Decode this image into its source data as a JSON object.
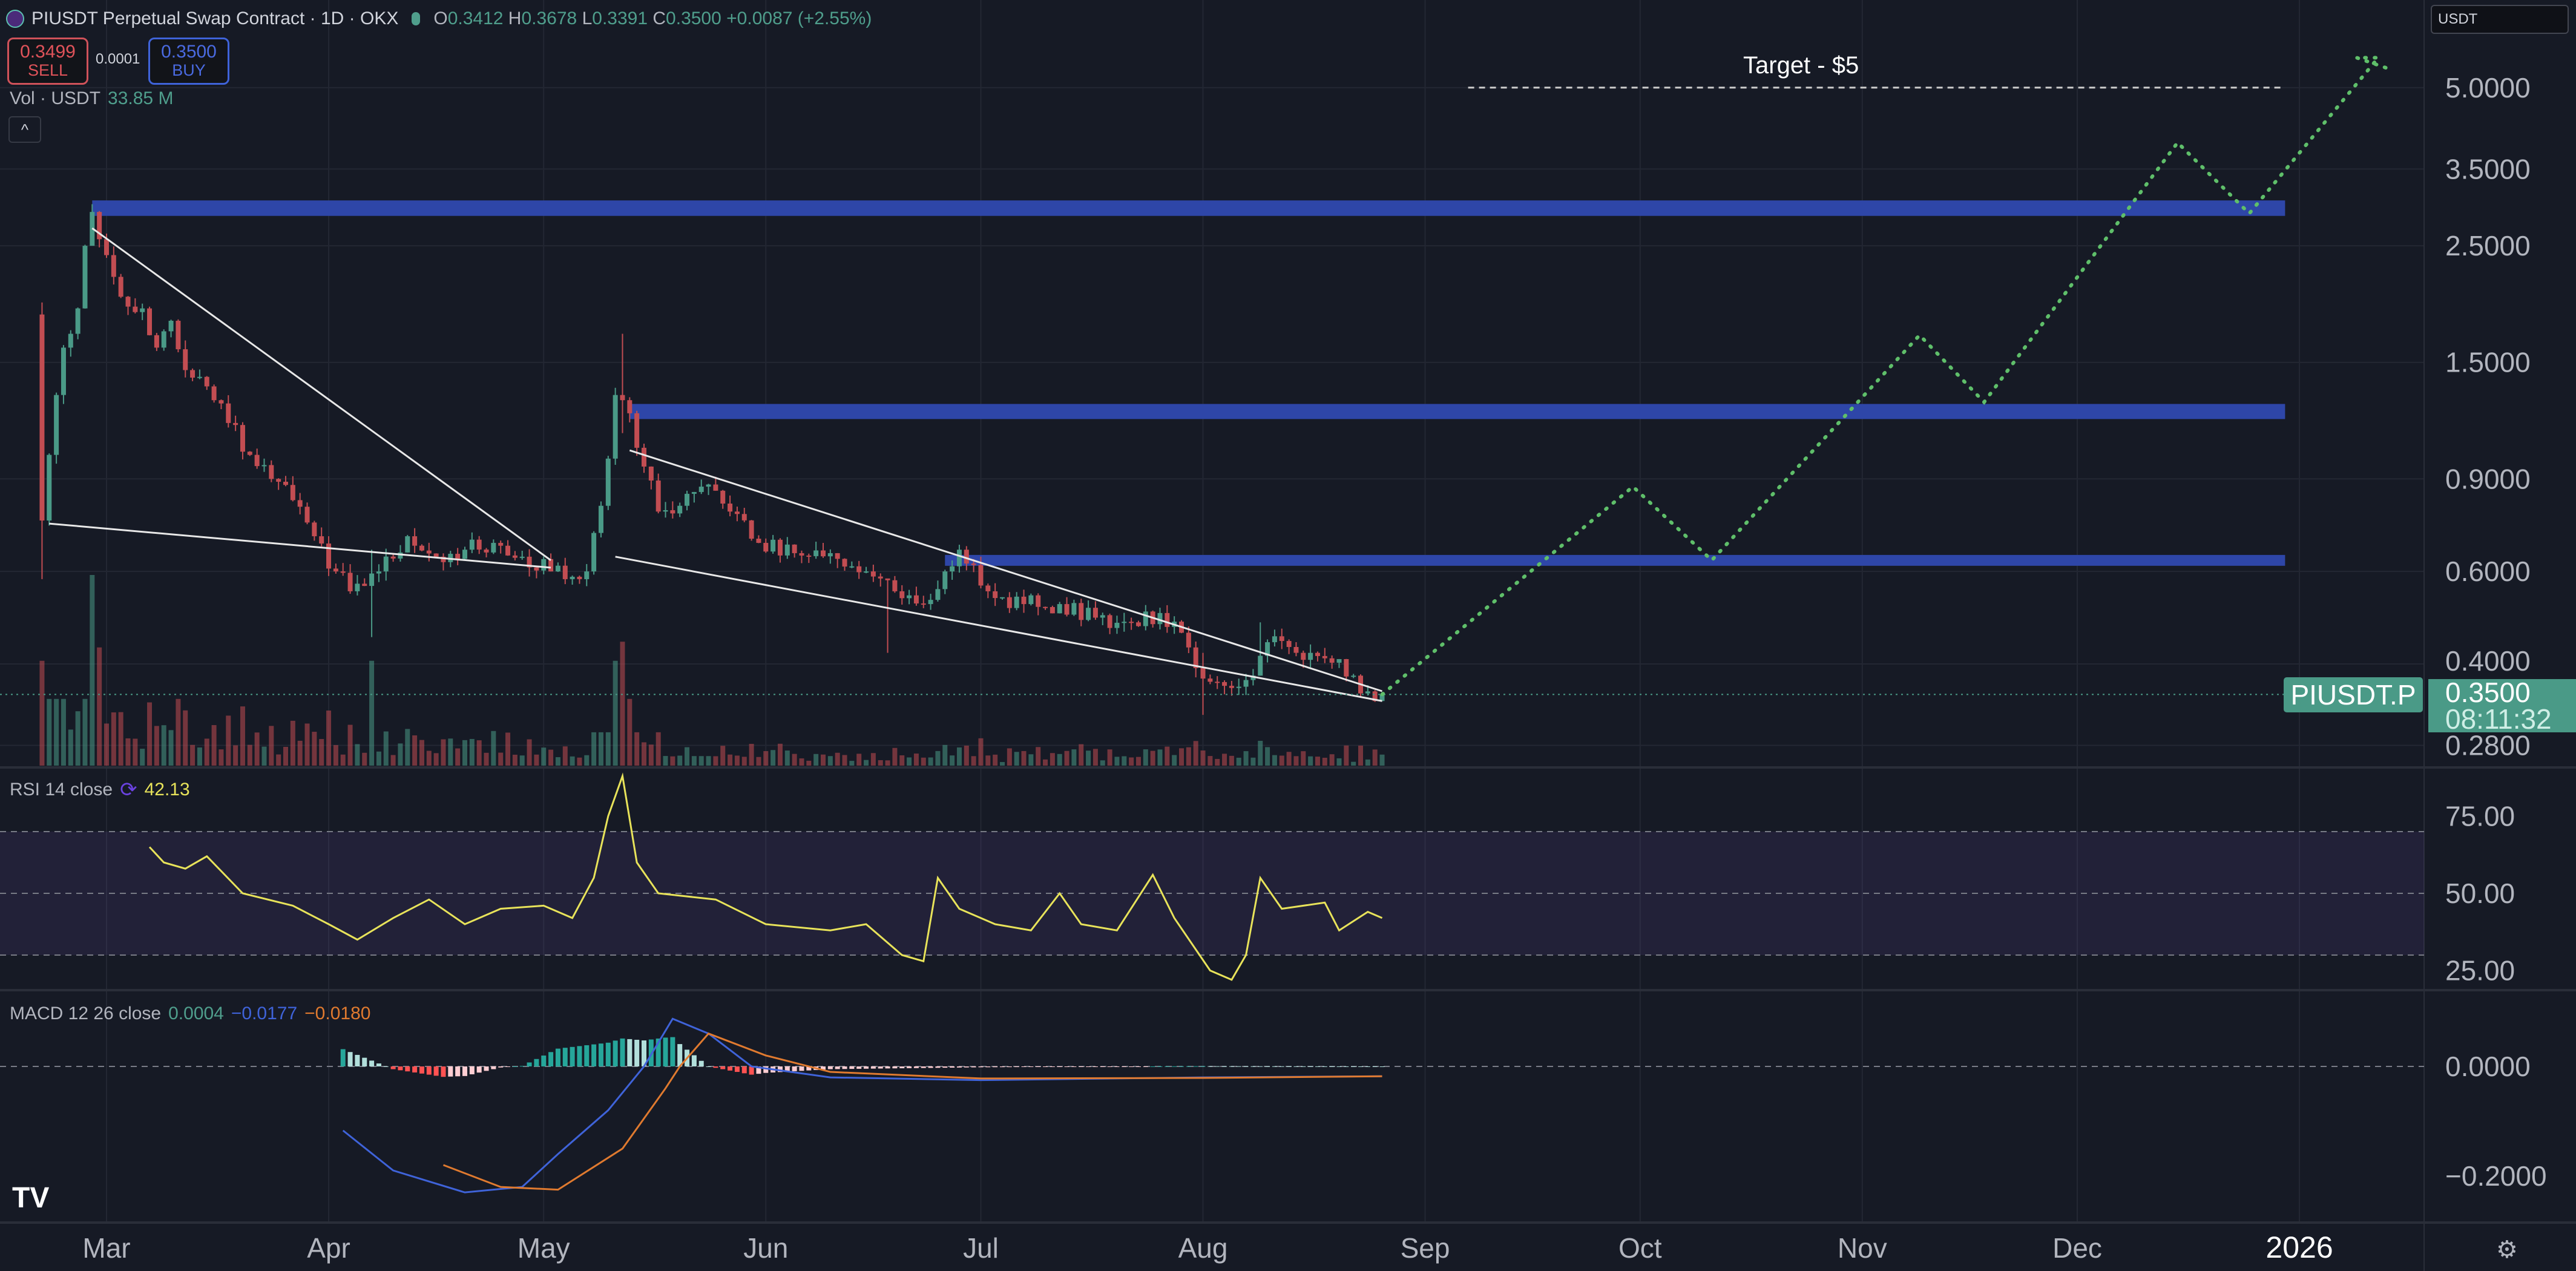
{
  "header": {
    "symbol_title": "PIUSDT Perpetual Swap Contract · 1D · OKX",
    "o_label": "O",
    "o": "0.3412",
    "h_label": "H",
    "h": "0.3678",
    "l_label": "L",
    "l": "0.3391",
    "c_label": "C",
    "c": "0.3500",
    "change": "+0.0087 (+2.55%)"
  },
  "trade": {
    "sell_price": "0.3499",
    "sell_label": "SELL",
    "spread": "0.0001",
    "buy_price": "0.3500",
    "buy_label": "BUY"
  },
  "volume": {
    "label": "Vol · USDT",
    "value": "33.85 M"
  },
  "collapse_label": "^",
  "currency_select": "USDT",
  "rsi": {
    "label": "RSI 14 close",
    "value": "42.13"
  },
  "macd": {
    "label": "MACD 12 26 close",
    "hist": "0.0004",
    "macd": "−0.0177",
    "signal": "−0.0180"
  },
  "price_tag": {
    "symbol": "PIUSDT.P",
    "price": "0.3500",
    "countdown": "08:11:32"
  },
  "target_label": "Target - $5",
  "colors": {
    "up": "#4a9a87",
    "down": "#c24d52",
    "band": "#2e46a8",
    "projection": "#5fbf6a",
    "rsi": "#e8e35a",
    "macd": "#3f63d9",
    "signal": "#e07a2f"
  },
  "chart_data": {
    "type": "candlestick",
    "title": "PIUSDT Perpetual Swap Contract · 1D · OKX",
    "price_axis": {
      "scale": "log",
      "ticks": [
        "5.0000",
        "3.5000",
        "2.5000",
        "1.5000",
        "0.9000",
        "0.6000",
        "0.4000",
        "0.2800"
      ],
      "tick_values": [
        5,
        3.5,
        2.5,
        1.5,
        0.9,
        0.6,
        0.4,
        0.28
      ]
    },
    "time_axis": {
      "ticks": [
        "Mar",
        "Apr",
        "May",
        "Jun",
        "Jul",
        "Aug",
        "Sep",
        "Oct",
        "Nov",
        "Dec",
        "2026"
      ],
      "tick_dates": [
        "03-01",
        "04-01",
        "05-01",
        "06-01",
        "07-01",
        "08-01",
        "09-01",
        "10-01",
        "11-01",
        "12-01",
        "13-01"
      ]
    },
    "first_open": 1.85,
    "close_path": [
      [
        "02-20",
        0.75
      ],
      [
        "02-21",
        1.0
      ],
      [
        "02-22",
        1.3
      ],
      [
        "02-23",
        1.6
      ],
      [
        "02-24",
        1.7
      ],
      [
        "02-25",
        1.9
      ],
      [
        "02-26",
        2.5
      ],
      [
        "02-27",
        2.9
      ],
      [
        "03-01",
        2.4
      ],
      [
        "03-03",
        2.0
      ],
      [
        "03-06",
        1.9
      ],
      [
        "03-08",
        1.6
      ],
      [
        "03-10",
        1.8
      ],
      [
        "03-12",
        1.45
      ],
      [
        "03-15",
        1.35
      ],
      [
        "03-18",
        1.15
      ],
      [
        "03-21",
        1.0
      ],
      [
        "03-24",
        0.9
      ],
      [
        "03-27",
        0.82
      ],
      [
        "03-30",
        0.7
      ],
      [
        "04-02",
        0.6
      ],
      [
        "04-04",
        0.55
      ],
      [
        "04-08",
        0.6
      ],
      [
        "04-12",
        0.7
      ],
      [
        "04-16",
        0.64
      ],
      [
        "04-20",
        0.66
      ],
      [
        "04-24",
        0.68
      ],
      [
        "04-28",
        0.64
      ],
      [
        "05-02",
        0.6
      ],
      [
        "05-07",
        0.6
      ],
      [
        "05-09",
        0.8
      ],
      [
        "05-11",
        1.3
      ],
      [
        "05-13",
        1.2
      ],
      [
        "05-15",
        0.95
      ],
      [
        "05-17",
        0.78
      ],
      [
        "05-20",
        0.8
      ],
      [
        "05-23",
        0.87
      ],
      [
        "05-27",
        0.78
      ],
      [
        "05-31",
        0.68
      ],
      [
        "06-05",
        0.65
      ],
      [
        "06-10",
        0.65
      ],
      [
        "06-15",
        0.6
      ],
      [
        "06-19",
        0.55
      ],
      [
        "06-23",
        0.52
      ],
      [
        "06-26",
        0.6
      ],
      [
        "06-28",
        0.66
      ],
      [
        "07-02",
        0.55
      ],
      [
        "07-07",
        0.52
      ],
      [
        "07-12",
        0.52
      ],
      [
        "07-17",
        0.49
      ],
      [
        "07-22",
        0.48
      ],
      [
        "07-26",
        0.5
      ],
      [
        "07-30",
        0.43
      ],
      [
        "08-02",
        0.37
      ],
      [
        "08-05",
        0.36
      ],
      [
        "08-08",
        0.38
      ],
      [
        "08-10",
        0.44
      ],
      [
        "08-14",
        0.42
      ],
      [
        "08-18",
        0.41
      ],
      [
        "08-22",
        0.38
      ],
      [
        "08-25",
        0.34
      ],
      [
        "08-26",
        0.35
      ]
    ],
    "wick_extremes": [
      [
        "02-20",
        1.95,
        0.58
      ],
      [
        "02-27",
        3.0,
        2.6
      ],
      [
        "04-07",
        0.66,
        0.45
      ],
      [
        "05-12",
        1.7,
        1.1
      ],
      [
        "06-18",
        0.58,
        0.42
      ],
      [
        "08-01",
        0.42,
        0.32
      ],
      [
        "08-09",
        0.48,
        0.38
      ]
    ],
    "volume_spikes": [
      [
        "02-20",
        0.55
      ],
      [
        "02-27",
        1.0
      ],
      [
        "02-28",
        0.62
      ],
      [
        "04-07",
        0.55
      ],
      [
        "05-11",
        0.55
      ],
      [
        "05-12",
        0.65
      ],
      [
        "05-13",
        0.35
      ]
    ],
    "zones": [
      {
        "from": "02-27",
        "to": "12-30",
        "low": 2.85,
        "high": 3.05
      },
      {
        "from": "05-13",
        "to": "12-30",
        "low": 1.17,
        "high": 1.25
      },
      {
        "from": "06-26",
        "to": "12-30",
        "low": 0.615,
        "high": 0.645
      }
    ],
    "trendlines": [
      [
        [
          "02-27",
          2.7
        ],
        [
          "05-02",
          0.63
        ]
      ],
      [
        [
          "02-21",
          0.74
        ],
        [
          "05-02",
          0.61
        ]
      ],
      [
        [
          "05-13",
          1.02
        ],
        [
          "08-26",
          0.355
        ]
      ],
      [
        [
          "05-11",
          0.64
        ],
        [
          "08-26",
          0.34
        ]
      ]
    ],
    "target": {
      "price": 5,
      "from": "09-07",
      "to": "12-30"
    },
    "projection": [
      [
        "08-26",
        0.35
      ],
      [
        "09-30",
        0.87
      ],
      [
        "10-11",
        0.63
      ],
      [
        "11-09",
        1.69
      ],
      [
        "11-18",
        1.26
      ],
      [
        "12-15",
        3.93
      ],
      [
        "12-25",
        2.88
      ],
      [
        "01-12",
        5.7
      ],
      [
        "01-09",
        5.7
      ],
      [
        "01-14",
        5.4
      ]
    ],
    "rsi": {
      "range": [
        0,
        100
      ],
      "ticks": [
        "75.00",
        "50.00",
        "25.00"
      ],
      "tick_values": [
        75,
        50,
        25
      ],
      "band": [
        30,
        70
      ],
      "points": [
        [
          "03-07",
          65
        ],
        [
          "03-09",
          60
        ],
        [
          "03-12",
          58
        ],
        [
          "03-15",
          62
        ],
        [
          "03-20",
          50
        ],
        [
          "03-27",
          46
        ],
        [
          "04-01",
          40
        ],
        [
          "04-05",
          35
        ],
        [
          "04-10",
          42
        ],
        [
          "04-15",
          48
        ],
        [
          "04-20",
          40
        ],
        [
          "04-25",
          45
        ],
        [
          "05-01",
          46
        ],
        [
          "05-05",
          42
        ],
        [
          "05-08",
          55
        ],
        [
          "05-10",
          75
        ],
        [
          "05-12",
          88
        ],
        [
          "05-14",
          60
        ],
        [
          "05-17",
          50
        ],
        [
          "05-25",
          48
        ],
        [
          "06-01",
          40
        ],
        [
          "06-10",
          38
        ],
        [
          "06-15",
          40
        ],
        [
          "06-20",
          30
        ],
        [
          "06-23",
          28
        ],
        [
          "06-25",
          55
        ],
        [
          "06-28",
          45
        ],
        [
          "07-03",
          40
        ],
        [
          "07-08",
          38
        ],
        [
          "07-12",
          50
        ],
        [
          "07-15",
          40
        ],
        [
          "07-20",
          38
        ],
        [
          "07-25",
          56
        ],
        [
          "07-28",
          42
        ],
        [
          "08-02",
          25
        ],
        [
          "08-05",
          22
        ],
        [
          "08-07",
          30
        ],
        [
          "08-09",
          55
        ],
        [
          "08-12",
          45
        ],
        [
          "08-18",
          47
        ],
        [
          "08-20",
          38
        ],
        [
          "08-24",
          44
        ],
        [
          "08-26",
          42
        ]
      ]
    },
    "macd": {
      "ticks": [
        "0.0000",
        "−0.2000"
      ],
      "tick_values": [
        0,
        -0.2
      ],
      "macd": [
        [
          "04-03",
          -0.117
        ],
        [
          "04-10",
          -0.19
        ],
        [
          "04-20",
          -0.23
        ],
        [
          "04-28",
          -0.22
        ],
        [
          "05-03",
          -0.16
        ],
        [
          "05-10",
          -0.08
        ],
        [
          "05-15",
          0.0
        ],
        [
          "05-19",
          0.087
        ],
        [
          "05-24",
          0.06
        ],
        [
          "05-30",
          0.0
        ],
        [
          "06-10",
          -0.02
        ],
        [
          "07-01",
          -0.025
        ],
        [
          "08-01",
          -0.02
        ],
        [
          "08-26",
          -0.018
        ]
      ],
      "signal": [
        [
          "04-17",
          -0.18
        ],
        [
          "04-25",
          -0.22
        ],
        [
          "05-03",
          -0.225
        ],
        [
          "05-12",
          -0.15
        ],
        [
          "05-18",
          -0.04
        ],
        [
          "05-20",
          0.0
        ],
        [
          "05-24",
          0.06
        ],
        [
          "06-01",
          0.02
        ],
        [
          "06-10",
          -0.01
        ],
        [
          "07-01",
          -0.022
        ],
        [
          "08-01",
          -0.021
        ],
        [
          "08-26",
          -0.018
        ]
      ]
    }
  }
}
